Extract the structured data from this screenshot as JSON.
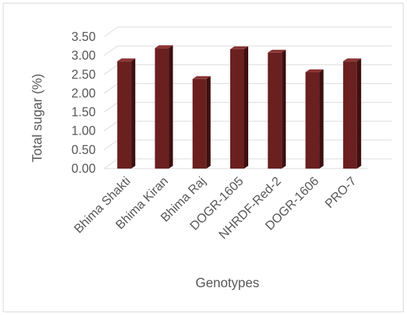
{
  "chart_data": {
    "type": "bar",
    "categories": [
      "Bhima Shakti",
      "Bhima Kiran",
      "Bhima Raj",
      "DOGR-1605",
      "NHRDF-Red-2",
      "DOGR-1606",
      "PRO-7"
    ],
    "values": [
      2.85,
      3.2,
      2.38,
      3.17,
      3.08,
      2.56,
      2.85
    ],
    "ylabel": "Total sugar (%)",
    "xlabel": "Genotypes",
    "ylim": [
      0,
      3.5
    ],
    "yticks": [
      "0.00",
      "0.50",
      "1.00",
      "1.50",
      "2.00",
      "2.50",
      "3.00",
      "3.50"
    ],
    "bar_color": "#6b2020",
    "grid": true,
    "style": "3d-column"
  }
}
